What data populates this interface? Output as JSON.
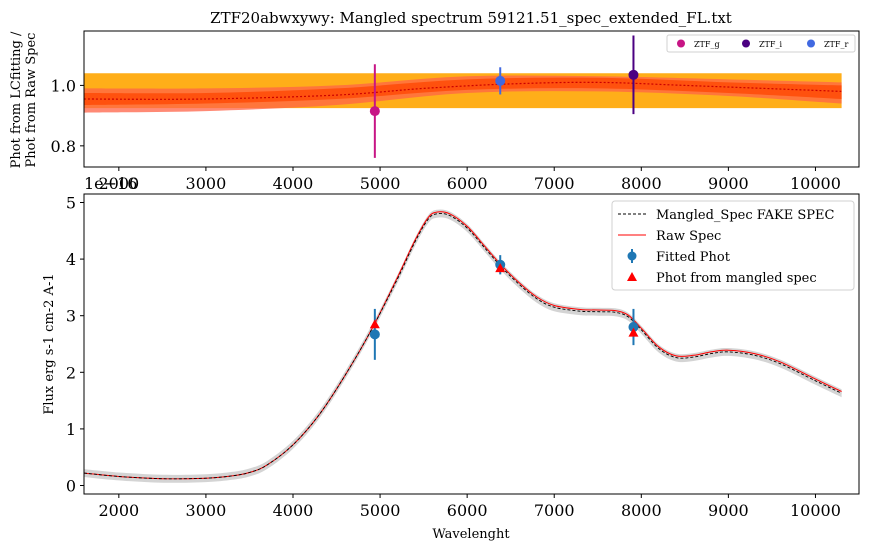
{
  "chart_data": [
    {
      "type": "scatter",
      "title": "ZTF20abwxywy: Mangled spectrum 59121.51_spec_extended_FL.txt",
      "ylabel_line1": "Phot from LCfitting /",
      "ylabel_line2": "Phot from Raw Spec",
      "xlim": [
        1600,
        10500
      ],
      "ylim": [
        0.73,
        1.18
      ],
      "xticks": [
        2000,
        3000,
        4000,
        5000,
        6000,
        7000,
        8000,
        9000,
        10000
      ],
      "yticks": [
        0.8,
        1.0
      ],
      "ytick_labels": [
        "0.8",
        "1.0"
      ],
      "offset_label": "1e−16",
      "legend_position": "top-right",
      "series": [
        {
          "name": "ZTF_g",
          "color": "#c71585",
          "x": [
            4940
          ],
          "y": [
            0.915
          ],
          "yerr": [
            0.155
          ]
        },
        {
          "name": "ZTF_i",
          "color": "#4b0082",
          "x": [
            7910
          ],
          "y": [
            1.035
          ],
          "yerr": [
            0.13
          ]
        },
        {
          "name": "ZTF_r",
          "color": "#4169e1",
          "x": [
            6380
          ],
          "y": [
            1.015
          ],
          "yerr": [
            0.045
          ]
        }
      ],
      "bands": [
        {
          "color": "#ffa500",
          "x": [
            1600,
            10300
          ],
          "lo": [
            0.925,
            0.925
          ],
          "hi": [
            1.04,
            1.04
          ]
        },
        {
          "color": "#ff6347",
          "x": [
            1600,
            3000,
            4500,
            6000,
            7500,
            9000,
            10300
          ],
          "lo": [
            0.91,
            0.915,
            0.935,
            0.975,
            0.98,
            0.965,
            0.94
          ],
          "hi": [
            0.99,
            0.99,
            1.0,
            1.03,
            1.03,
            1.02,
            1.01
          ]
        },
        {
          "color": "#ff4500",
          "x": [
            1600,
            3000,
            4500,
            6000,
            7500,
            9000,
            10300
          ],
          "lo": [
            0.935,
            0.94,
            0.955,
            0.985,
            0.99,
            0.975,
            0.955
          ],
          "hi": [
            0.975,
            0.975,
            0.99,
            1.02,
            1.025,
            1.01,
            1.0
          ]
        }
      ],
      "ratio_curve": {
        "color": "#cc0000",
        "x": [
          1600,
          3000,
          4500,
          5500,
          6500,
          7500,
          8500,
          10300
        ],
        "y": [
          0.955,
          0.955,
          0.968,
          0.99,
          1.005,
          1.01,
          1.0,
          0.98
        ]
      }
    },
    {
      "type": "line",
      "xlabel": "Wavelenght",
      "ylabel": "Flux erg s-1 cm-2 A-1",
      "xlim": [
        1600,
        10500
      ],
      "ylim": [
        -0.15,
        5.15
      ],
      "xticks": [
        2000,
        3000,
        4000,
        5000,
        6000,
        7000,
        8000,
        9000,
        10000
      ],
      "yticks": [
        0,
        1,
        2,
        3,
        4,
        5
      ],
      "legend_position": "top-right",
      "legend": [
        "Mangled_Spec FAKE SPEC",
        "Raw Spec",
        "Fitted Phot",
        "Phot from mangled spec"
      ],
      "spectrum": {
        "x": [
          1600,
          2000,
          2500,
          3000,
          3300,
          3500,
          3700,
          4000,
          4300,
          4600,
          4900,
          5200,
          5400,
          5550,
          5650,
          5800,
          6000,
          6200,
          6400,
          6600,
          6800,
          7000,
          7300,
          7500,
          7700,
          7850,
          8000,
          8200,
          8400,
          8600,
          8800,
          9000,
          9300,
          9600,
          10000,
          10300
        ],
        "y": [
          0.22,
          0.16,
          0.12,
          0.13,
          0.17,
          0.23,
          0.36,
          0.72,
          1.25,
          1.95,
          2.75,
          3.65,
          4.3,
          4.7,
          4.8,
          4.77,
          4.55,
          4.2,
          3.85,
          3.55,
          3.3,
          3.15,
          3.08,
          3.07,
          3.06,
          2.98,
          2.75,
          2.42,
          2.26,
          2.27,
          2.33,
          2.36,
          2.3,
          2.15,
          1.85,
          1.63
        ]
      },
      "band_halfwidth": 0.07,
      "fitted_phot": {
        "color": "#1f77b4",
        "x": [
          4940,
          6380,
          7910
        ],
        "y": [
          2.67,
          3.9,
          2.8
        ],
        "yerr": [
          0.45,
          0.17,
          0.32
        ]
      },
      "phot_mangled": {
        "color": "#ff0000",
        "x": [
          4940,
          6380,
          7910
        ],
        "y": [
          2.85,
          3.84,
          2.7
        ]
      }
    }
  ]
}
